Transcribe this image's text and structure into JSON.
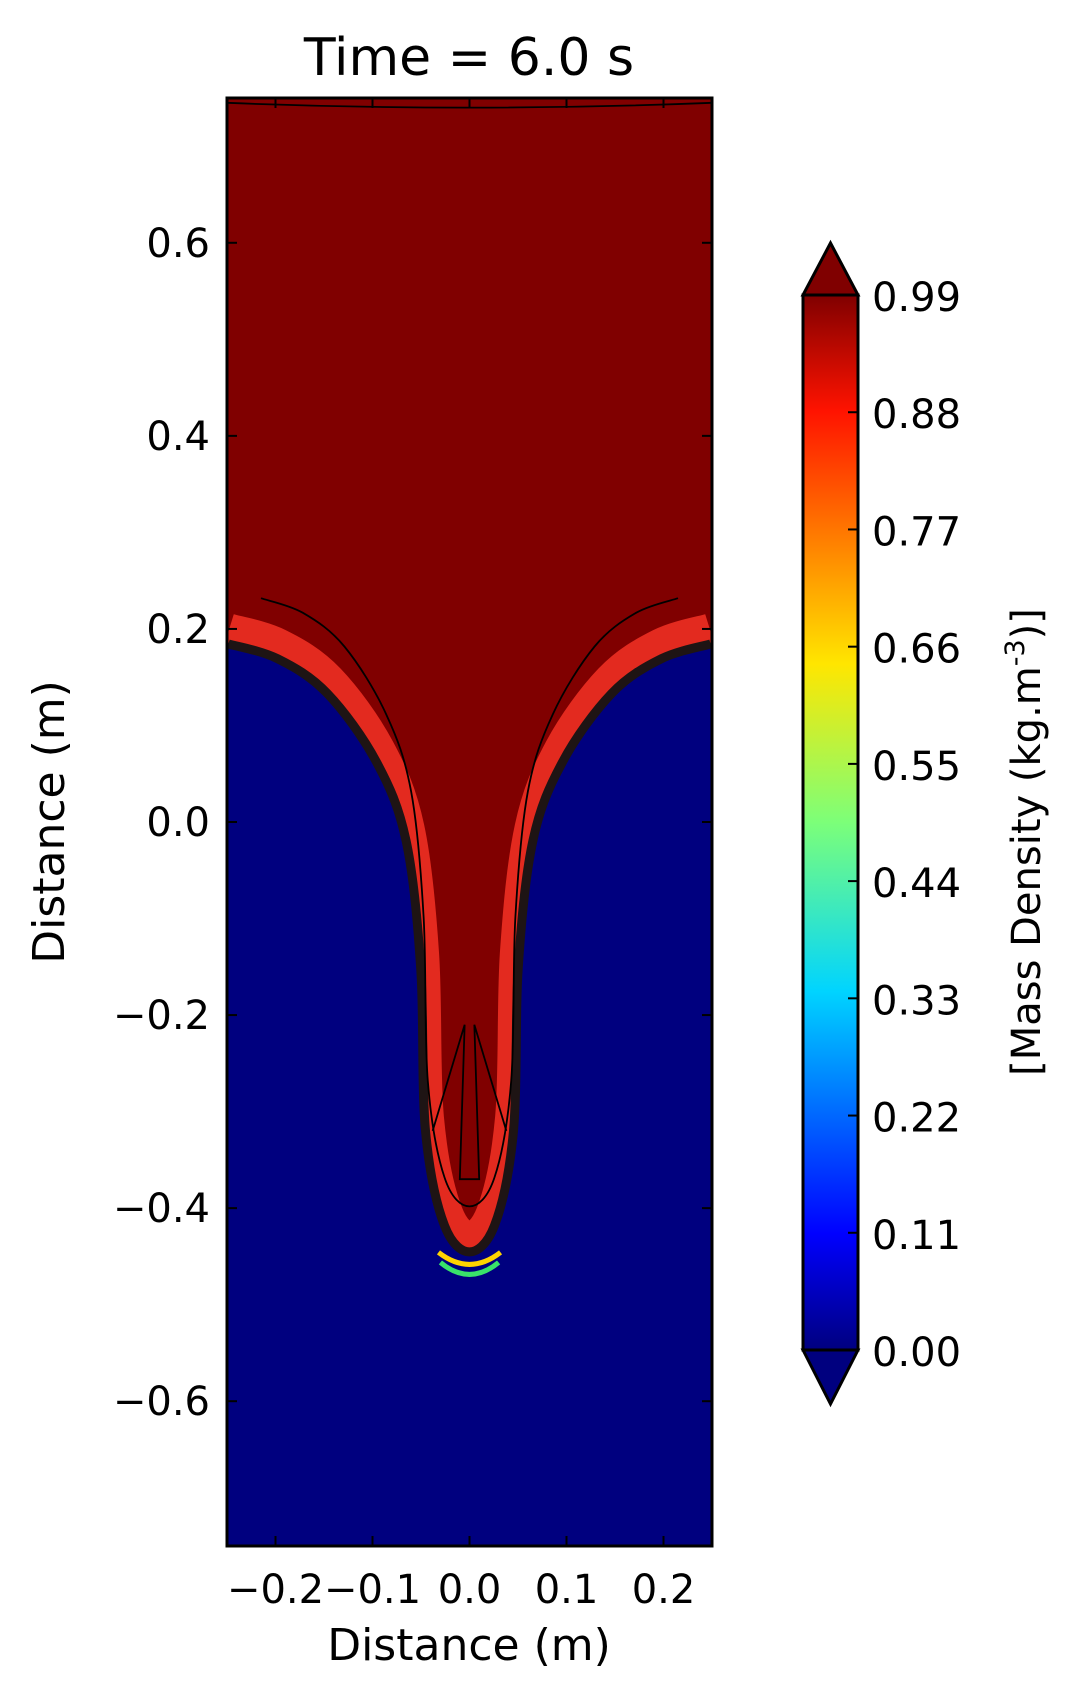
{
  "chart_data": {
    "type": "heatmap",
    "title": "Time = 6.0 s",
    "xlabel": "Distance (m)",
    "ylabel": "Distance (m)",
    "xlim": [
      -0.25,
      0.25
    ],
    "ylim": [
      -0.75,
      0.75
    ],
    "xticks": [
      {
        "value": -0.2,
        "label": "−0.2"
      },
      {
        "value": -0.1,
        "label": "−0.1"
      },
      {
        "value": 0.0,
        "label": "0.0"
      },
      {
        "value": 0.1,
        "label": "0.1"
      },
      {
        "value": 0.2,
        "label": "0.2"
      }
    ],
    "yticks": [
      {
        "value": 0.6,
        "label": "0.6"
      },
      {
        "value": 0.4,
        "label": "0.4"
      },
      {
        "value": 0.2,
        "label": "0.2"
      },
      {
        "value": 0.0,
        "label": "0.0"
      },
      {
        "value": -0.2,
        "label": "−0.2"
      },
      {
        "value": -0.4,
        "label": "−0.4"
      },
      {
        "value": -0.6,
        "label": "−0.6"
      }
    ],
    "interface_profile": {
      "x": [
        -0.25,
        -0.2,
        -0.15,
        -0.1,
        -0.07,
        -0.055,
        -0.05,
        -0.03,
        0.0,
        0.03,
        0.05,
        0.055,
        0.07,
        0.1,
        0.15,
        0.2,
        0.25
      ],
      "y": [
        0.18,
        0.165,
        0.13,
        0.06,
        -0.02,
        -0.15,
        -0.32,
        -0.42,
        -0.45,
        -0.42,
        -0.32,
        -0.15,
        -0.02,
        0.06,
        0.13,
        0.165,
        0.18
      ]
    },
    "colorbar": {
      "label": "[Mass Density (kg.m",
      "label_sup": "-3",
      "label_end": ")]",
      "min": 0.0,
      "max": 0.99,
      "extend": "both",
      "colormap": "jet",
      "ticks": [
        {
          "value": 0.99,
          "label": "0.99"
        },
        {
          "value": 0.88,
          "label": "0.88"
        },
        {
          "value": 0.77,
          "label": "0.77"
        },
        {
          "value": 0.66,
          "label": "0.66"
        },
        {
          "value": 0.55,
          "label": "0.55"
        },
        {
          "value": 0.44,
          "label": "0.44"
        },
        {
          "value": 0.33,
          "label": "0.33"
        },
        {
          "value": 0.22,
          "label": "0.22"
        },
        {
          "value": 0.11,
          "label": "0.11"
        },
        {
          "value": 0.0,
          "label": "0.00"
        }
      ]
    },
    "colors": {
      "heavy_fluid": "#800000",
      "light_fluid": "#00007f",
      "contour_line": "#000000"
    }
  }
}
